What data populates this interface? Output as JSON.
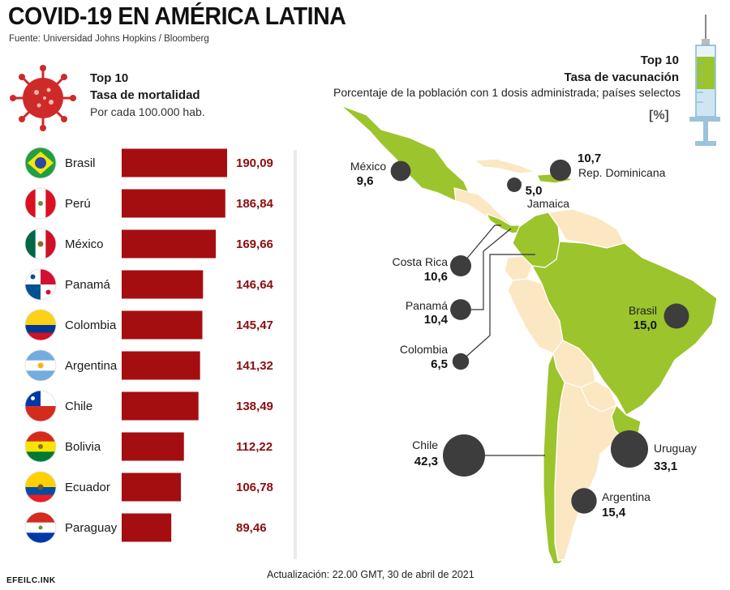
{
  "title": "COVID-19 EN AMÉRICA LATINA",
  "source": "Fuente: Universidad Johns Hopkins / Bloomberg",
  "mortality": {
    "top": "Top 10",
    "heading": "Tasa de mortalidad",
    "subheading": "Por cada 100.000 hab."
  },
  "vaccination": {
    "top": "Top 10",
    "heading": "Tasa de vacunación",
    "subheading": "Porcentaje de la población con 1 dosis administrada; países selectos",
    "unit": "[%]"
  },
  "update": "Actualización: 22.00 GMT, 30 de abril de 2021",
  "logo": "EFEILC.INK",
  "colors": {
    "bar": "#a50e10",
    "value": "#8c0d10",
    "map_green": "#9cc42c",
    "map_tan": "#fbe7c2",
    "bubble": "#3d3d3d"
  },
  "chart_data": [
    {
      "type": "bar",
      "orientation": "horizontal",
      "title": "Tasa de mortalidad",
      "categories": [
        "Brasil",
        "Perú",
        "México",
        "Panamá",
        "Colombia",
        "Argentina",
        "Chile",
        "Bolivia",
        "Ecuador",
        "Paraguay"
      ],
      "values": [
        190.09,
        186.84,
        169.66,
        146.64,
        145.47,
        141.32,
        138.49,
        112.22,
        106.78,
        89.46
      ],
      "labels": [
        "190,09",
        "186,84",
        "169,66",
        "146,64",
        "145,47",
        "141,32",
        "138,49",
        "112,22",
        "106,78",
        "89,46"
      ],
      "flags": [
        "brazil-flag-icon",
        "peru-flag-icon",
        "mexico-flag-icon",
        "panama-flag-icon",
        "colombia-flag-icon",
        "argentina-flag-icon",
        "chile-flag-icon",
        "bolivia-flag-icon",
        "ecuador-flag-icon",
        "paraguay-flag-icon"
      ]
    },
    {
      "type": "scatter",
      "subtype": "bubble-map",
      "title": "Tasa de vacunación",
      "categories": [
        "México",
        "Jamaica",
        "Rep. Dominicana",
        "Costa Rica",
        "Panamá",
        "Colombia",
        "Brasil",
        "Chile",
        "Uruguay",
        "Argentina"
      ],
      "values": [
        9.6,
        5.0,
        10.7,
        10.6,
        10.4,
        6.5,
        15.0,
        42.3,
        33.1,
        15.4
      ],
      "labels": [
        "9,6",
        "5,0",
        "10,7",
        "10,6",
        "10,4",
        "6,5",
        "15,0",
        "42,3",
        "33,1",
        "15,4"
      ]
    }
  ]
}
